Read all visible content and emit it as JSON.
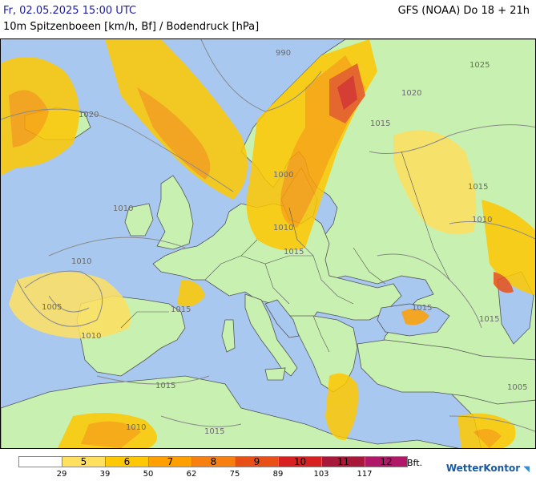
{
  "header": {
    "date": "Fr, 02.05.2025 15:00 UTC",
    "model": "GFS (NOAA) Do 18 + 21h",
    "parameter": "10m Spitzenboeen [km/h, Bf] / Bodendruck [hPa]"
  },
  "isobar_labels": [
    "990",
    "1025",
    "1020",
    "1015",
    "1020",
    "1010",
    "1010",
    "1010",
    "1005",
    "1010",
    "1015",
    "1015",
    "1015",
    "1015",
    "1010",
    "1010",
    "1015",
    "1005",
    "1015",
    "1015",
    "1000"
  ],
  "legend": {
    "bft_labels": [
      "",
      "5",
      "6",
      "7",
      "8",
      "9",
      "10",
      "11",
      "12"
    ],
    "colors": [
      "#ffffff",
      "#ffe060",
      "#ffc800",
      "#ffa000",
      "#f88010",
      "#e85018",
      "#d82020",
      "#a81838",
      "#b01868"
    ],
    "values": [
      "29",
      "39",
      "50",
      "62",
      "75",
      "89",
      "103",
      "117"
    ],
    "unit": "Bft."
  },
  "logo": {
    "text": "WetterKontor"
  },
  "colors": {
    "sea": "#a8c8f0",
    "land": "#c8f0b0",
    "coast": "#555555",
    "isobar": "#8a8a8a"
  }
}
